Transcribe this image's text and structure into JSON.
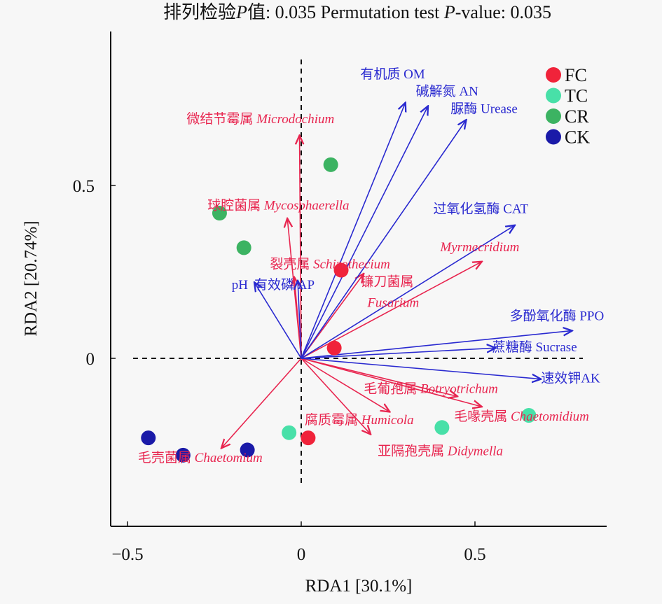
{
  "chart_data": {
    "type": "scatter",
    "subtype": "rda-biplot",
    "title": "排列检验P值: 0.035 Permutation test P-value: 0.035",
    "title_parts": [
      {
        "text": "排列检验",
        "italic": false
      },
      {
        "text": "P",
        "italic": true
      },
      {
        "text": "值: 0.035 Permutation test ",
        "italic": false
      },
      {
        "text": "P",
        "italic": true
      },
      {
        "text": "-value: 0.035",
        "italic": false
      }
    ],
    "xlabel": "RDA1 [30.1%]",
    "ylabel": "RDA2 [20.74%]",
    "xlim": [
      -0.55,
      0.88
    ],
    "ylim": [
      -0.48,
      0.95
    ],
    "xticks": [
      -0.5,
      0,
      0.5
    ],
    "xtick_labels": [
      "−0.5",
      "0",
      "0.5"
    ],
    "yticks": [
      0,
      0.5
    ],
    "ytick_labels": [
      "0",
      "0.5"
    ],
    "grid": false,
    "reference_lines": [
      "x=0 dashed",
      "y=0 dashed"
    ],
    "legend": {
      "placement": "top-right",
      "entries": [
        {
          "name": "FC",
          "color": "#f0233a"
        },
        {
          "name": "TC",
          "color": "#48e0a8"
        },
        {
          "name": "CR",
          "color": "#3cb362"
        },
        {
          "name": "CK",
          "color": "#1a1aa8"
        }
      ]
    },
    "points": [
      {
        "group": "FC",
        "x": 0.115,
        "y": 0.255
      },
      {
        "group": "FC",
        "x": 0.095,
        "y": 0.03
      },
      {
        "group": "FC",
        "x": 0.02,
        "y": -0.23
      },
      {
        "group": "TC",
        "x": -0.035,
        "y": -0.215
      },
      {
        "group": "TC",
        "x": 0.405,
        "y": -0.2
      },
      {
        "group": "TC",
        "x": 0.655,
        "y": -0.165
      },
      {
        "group": "CR",
        "x": 0.085,
        "y": 0.56
      },
      {
        "group": "CR",
        "x": -0.235,
        "y": 0.42
      },
      {
        "group": "CR",
        "x": -0.165,
        "y": 0.32
      },
      {
        "group": "CK",
        "x": -0.44,
        "y": -0.23
      },
      {
        "group": "CK",
        "x": -0.34,
        "y": -0.28
      },
      {
        "group": "CK",
        "x": -0.155,
        "y": -0.265
      }
    ],
    "env_vectors": [
      {
        "label": "有机质 OM",
        "x": 0.3,
        "y": 0.74
      },
      {
        "label": "碱解氮 AN",
        "x": 0.365,
        "y": 0.73
      },
      {
        "label": "脲酶 Urease",
        "x": 0.475,
        "y": 0.69
      },
      {
        "label": "过氧化氢酶 CAT",
        "x": 0.615,
        "y": 0.385
      },
      {
        "label": "多酚氧化酶 PPO",
        "x": 0.78,
        "y": 0.08
      },
      {
        "label": "蔗糖酶 Sucrase",
        "x": 0.56,
        "y": 0.03
      },
      {
        "label": "速效钾AK",
        "x": 0.69,
        "y": -0.06
      },
      {
        "label": "pH",
        "x": -0.135,
        "y": 0.22
      },
      {
        "label": "有效磷 AP",
        "x": -0.01,
        "y": 0.225
      }
    ],
    "genus_vectors": [
      {
        "cn": "微结节霉属",
        "latin": "Microdochium",
        "x": -0.005,
        "y": 0.645
      },
      {
        "cn": "球腔菌属",
        "latin": "Mycosphaerella",
        "x": -0.04,
        "y": 0.405
      },
      {
        "cn": "裂壳属",
        "latin": "Schizothecium",
        "x": -0.02,
        "y": 0.235
      },
      {
        "cn": "镰刀菌属",
        "latin": "Fusarium",
        "x": 0.18,
        "y": 0.245
      },
      {
        "cn": "",
        "latin": "Myrmecridium",
        "x": 0.52,
        "y": 0.28
      },
      {
        "cn": "毛葡孢属",
        "latin": "Botryotrichum",
        "x": 0.45,
        "y": -0.11
      },
      {
        "cn": "毛喙壳属",
        "latin": "Chaetomidium",
        "x": 0.52,
        "y": -0.14
      },
      {
        "cn": "腐质霉属",
        "latin": "Humicola",
        "x": 0.255,
        "y": -0.155
      },
      {
        "cn": "亚隔孢壳属",
        "latin": "Didymella",
        "x": 0.2,
        "y": -0.22
      },
      {
        "cn": "毛壳菌属",
        "latin": "Chaetomium",
        "x": -0.23,
        "y": -0.26
      }
    ],
    "env_vector_color": "#2a2ad0",
    "genus_vector_color": "#e8254f"
  },
  "label_positions": {
    "env": [
      {
        "dx": 0.17,
        "dy": 0.81
      },
      {
        "dx": 0.33,
        "dy": 0.76
      },
      {
        "dx": 0.43,
        "dy": 0.71
      },
      {
        "dx": 0.38,
        "dy": 0.42
      },
      {
        "dx": 0.6,
        "dy": 0.11
      },
      {
        "dx": 0.55,
        "dy": 0.02
      },
      {
        "dx": 0.69,
        "dy": -0.07
      },
      {
        "dx": -0.2,
        "dy": 0.2
      },
      {
        "dx": -0.135,
        "dy": 0.2
      }
    ],
    "genus": [
      {
        "dx": -0.33,
        "dy": 0.68
      },
      {
        "dx": -0.27,
        "dy": 0.43
      },
      {
        "dx": -0.09,
        "dy": 0.26
      },
      {
        "dx": 0.17,
        "dy": 0.21
      },
      {
        "dx": 0.4,
        "dy": 0.31
      },
      {
        "dx": 0.18,
        "dy": -0.1
      },
      {
        "dx": 0.44,
        "dy": -0.18
      },
      {
        "dx": 0.01,
        "dy": -0.19
      },
      {
        "dx": 0.22,
        "dy": -0.28
      },
      {
        "dx": -0.47,
        "dy": -0.3
      }
    ],
    "genus_split": [
      false,
      false,
      false,
      true,
      false,
      false,
      false,
      false,
      false,
      false
    ]
  }
}
